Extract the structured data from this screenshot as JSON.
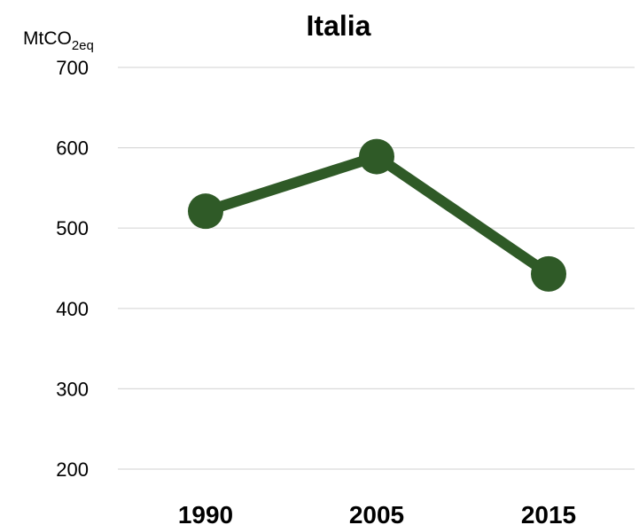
{
  "chart_data": {
    "type": "line",
    "title": "Italia",
    "ylabel": "MtCO",
    "ylabel_subscript": "2eq",
    "categories": [
      "1990",
      "2005",
      "2015"
    ],
    "series": [
      {
        "values": [
          521,
          589,
          443
        ],
        "color": "#2f5a27"
      }
    ],
    "ylim": [
      200,
      700
    ],
    "yticks": [
      "700",
      "600",
      "500",
      "400",
      "300",
      "200"
    ],
    "grid": true,
    "legend": "none"
  }
}
